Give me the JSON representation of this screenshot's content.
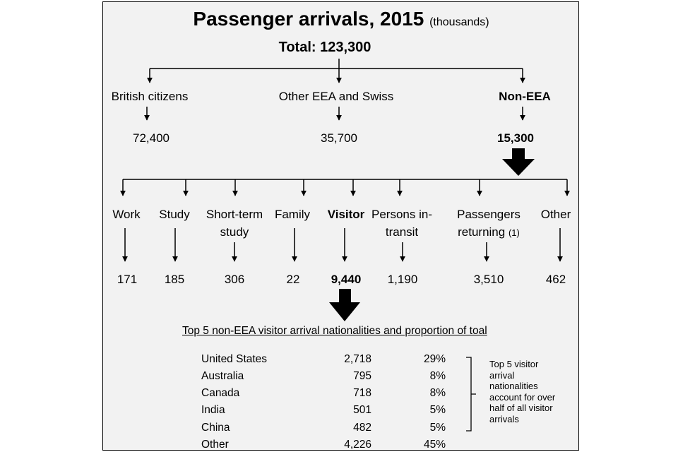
{
  "title": "Passenger arrivals, 2015",
  "units": "(thousands)",
  "total": "Total: 123,300",
  "top_level": [
    {
      "label": "British citizens",
      "value": "72,400"
    },
    {
      "label": "Other EEA and Swiss",
      "value": "35,700"
    },
    {
      "label": "Non-EEA",
      "value": "15,300"
    }
  ],
  "non_eea_categories": [
    {
      "label": "Work",
      "value": "171"
    },
    {
      "label": "Study",
      "value": "185"
    },
    {
      "label_line1": "Short-term",
      "label_line2": "study",
      "value": "306"
    },
    {
      "label": "Family",
      "value": "22"
    },
    {
      "label": "Visitor",
      "value": "9,440"
    },
    {
      "label_line1": "Persons in-",
      "label_line2": "transit",
      "value": "1,190"
    },
    {
      "label_line1": "Passengers",
      "label_line2": "returning",
      "footnote": "(1)",
      "value": "3,510"
    },
    {
      "label": "Other",
      "value": "462"
    }
  ],
  "table": {
    "heading": "Top 5 non-EEA visitor arrival nationalities and proportion of toal",
    "rows": [
      {
        "country": "United States",
        "value": "2,718",
        "pct": "29%"
      },
      {
        "country": "Australia",
        "value": "795",
        "pct": "8%"
      },
      {
        "country": "Canada",
        "value": "718",
        "pct": "8%"
      },
      {
        "country": "India",
        "value": "501",
        "pct": "5%"
      },
      {
        "country": "China",
        "value": "482",
        "pct": "5%"
      },
      {
        "country": "Other",
        "value": "4,226",
        "pct": "45%"
      }
    ],
    "note_lines": [
      "Top 5 visitor",
      "arrival",
      "nationalities",
      "account for over",
      "half of all visitor",
      "arrivals"
    ]
  }
}
